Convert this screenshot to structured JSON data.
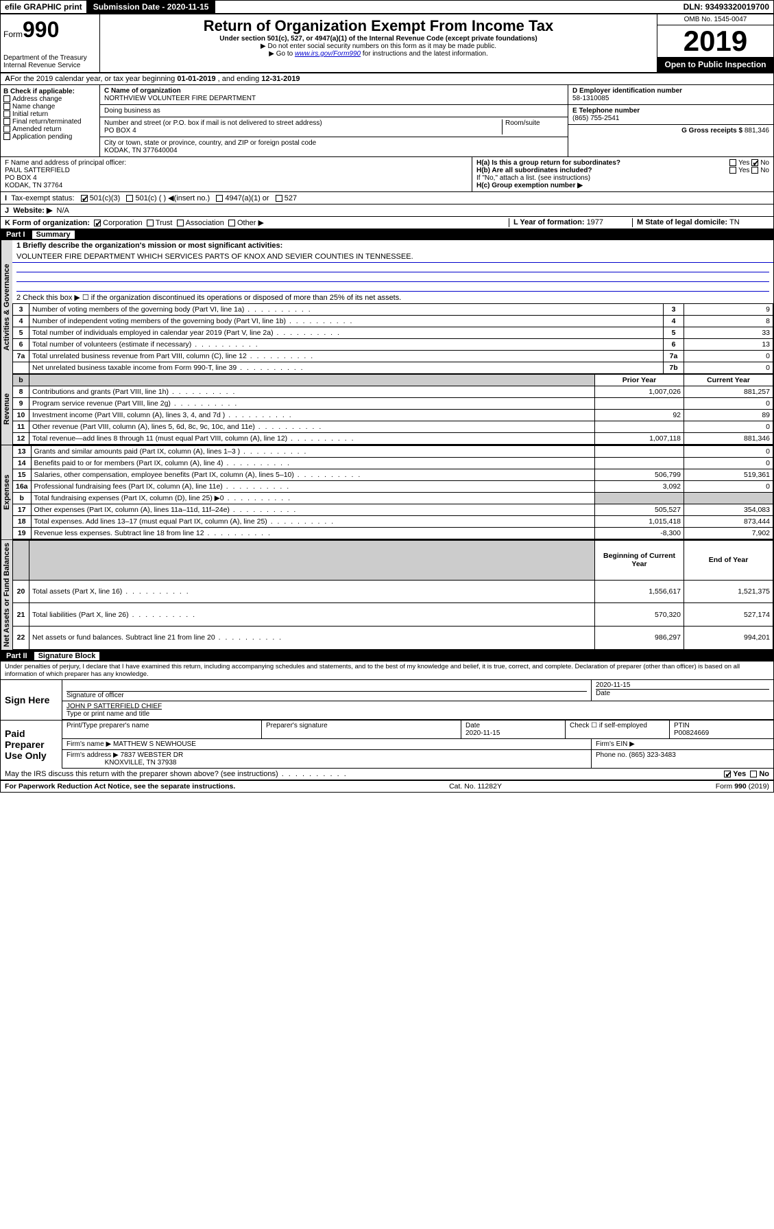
{
  "topbar": {
    "efile": "efile GRAPHIC print",
    "submission_label": "Submission Date - ",
    "submission_date": "2020-11-15",
    "dln_label": "DLN: ",
    "dln": "93493320019700"
  },
  "header": {
    "form_prefix": "Form",
    "form_number": "990",
    "dept": "Department of the Treasury\nInternal Revenue Service",
    "title": "Return of Organization Exempt From Income Tax",
    "sub1": "Under section 501(c), 527, or 4947(a)(1) of the Internal Revenue Code (except private foundations)",
    "sub2": "▶ Do not enter social security numbers on this form as it may be made public.",
    "sub3_pre": "▶ Go to ",
    "sub3_link": "www.irs.gov/Form990",
    "sub3_post": " for instructions and the latest information.",
    "omb": "OMB No. 1545-0047",
    "year": "2019",
    "open": "Open to Public Inspection"
  },
  "period": {
    "label_a": "For the 2019 calendar year, or tax year beginning ",
    "begin": "01-01-2019",
    "label_mid": " , and ending ",
    "end": "12-31-2019"
  },
  "boxB": {
    "title": "B Check if applicable:",
    "items": [
      "Address change",
      "Name change",
      "Initial return",
      "Final return/terminated",
      "Amended return",
      "Application pending"
    ]
  },
  "boxC": {
    "name_label": "C Name of organization",
    "name": "NORTHVIEW VOLUNTEER FIRE DEPARTMENT",
    "dba_label": "Doing business as",
    "dba": "",
    "addr_label": "Number and street (or P.O. box if mail is not delivered to street address)",
    "room_label": "Room/suite",
    "addr": "PO BOX 4",
    "city_label": "City or town, state or province, country, and ZIP or foreign postal code",
    "city": "KODAK, TN  377640004"
  },
  "boxD": {
    "label": "D Employer identification number",
    "value": "58-1310085"
  },
  "boxE": {
    "label": "E Telephone number",
    "value": "(865) 755-2541"
  },
  "boxG": {
    "label": "G Gross receipts $ ",
    "value": "881,346"
  },
  "boxF": {
    "label": "F  Name and address of principal officer:",
    "lines": [
      "PAUL SATTERFIELD",
      "PO BOX 4",
      "KODAK, TN  37764"
    ]
  },
  "boxH": {
    "a_label": "H(a)  Is this a group return for subordinates?",
    "a_yes": "Yes",
    "a_no": "No",
    "b_label": "H(b)  Are all subordinates included?",
    "b_note": "If \"No,\" attach a list. (see instructions)",
    "c_label": "H(c)  Group exemption number ▶"
  },
  "boxI": {
    "label": "Tax-exempt status:",
    "opts": [
      "501(c)(3)",
      "501(c) (  ) ◀(insert no.)",
      "4947(a)(1) or",
      "527"
    ]
  },
  "boxJ": {
    "label": "Website: ▶",
    "value": "N/A"
  },
  "boxK": {
    "label": "K Form of organization:",
    "opts": [
      "Corporation",
      "Trust",
      "Association",
      "Other ▶"
    ]
  },
  "boxL": {
    "label": "L Year of formation: ",
    "value": "1977"
  },
  "boxM": {
    "label": "M State of legal domicile: ",
    "value": "TN"
  },
  "partI": {
    "title": "Part I",
    "subtitle": "Summary"
  },
  "summary": {
    "line1_label": "1  Briefly describe the organization's mission or most significant activities:",
    "line1_value": "VOLUNTEER FIRE DEPARTMENT WHICH SERVICES PARTS OF KNOX AND SEVIER COUNTIES IN TENNESSEE.",
    "line2": "2  Check this box ▶ ☐  if the organization discontinued its operations or disposed of more than 25% of its net assets.",
    "rows_top": [
      {
        "n": "3",
        "label": "Number of voting members of the governing body (Part VI, line 1a)",
        "box": "3",
        "val": "9"
      },
      {
        "n": "4",
        "label": "Number of independent voting members of the governing body (Part VI, line 1b)",
        "box": "4",
        "val": "8"
      },
      {
        "n": "5",
        "label": "Total number of individuals employed in calendar year 2019 (Part V, line 2a)",
        "box": "5",
        "val": "33"
      },
      {
        "n": "6",
        "label": "Total number of volunteers (estimate if necessary)",
        "box": "6",
        "val": "13"
      },
      {
        "n": "7a",
        "label": "Total unrelated business revenue from Part VIII, column (C), line 12",
        "box": "7a",
        "val": "0"
      },
      {
        "n": "",
        "label": "Net unrelated business taxable income from Form 990-T, line 39",
        "box": "7b",
        "val": "0"
      }
    ],
    "col_headers": {
      "prior": "Prior Year",
      "current": "Current Year"
    },
    "section_labels": {
      "gov": "Activities & Governance",
      "rev": "Revenue",
      "exp": "Expenses",
      "net": "Net Assets or Fund Balances"
    },
    "rows_rev": [
      {
        "n": "8",
        "label": "Contributions and grants (Part VIII, line 1h)",
        "prior": "1,007,026",
        "cur": "881,257"
      },
      {
        "n": "9",
        "label": "Program service revenue (Part VIII, line 2g)",
        "prior": "",
        "cur": "0"
      },
      {
        "n": "10",
        "label": "Investment income (Part VIII, column (A), lines 3, 4, and 7d )",
        "prior": "92",
        "cur": "89"
      },
      {
        "n": "11",
        "label": "Other revenue (Part VIII, column (A), lines 5, 6d, 8c, 9c, 10c, and 11e)",
        "prior": "",
        "cur": "0"
      },
      {
        "n": "12",
        "label": "Total revenue—add lines 8 through 11 (must equal Part VIII, column (A), line 12)",
        "prior": "1,007,118",
        "cur": "881,346"
      }
    ],
    "rows_exp": [
      {
        "n": "13",
        "label": "Grants and similar amounts paid (Part IX, column (A), lines 1–3 )",
        "prior": "",
        "cur": "0"
      },
      {
        "n": "14",
        "label": "Benefits paid to or for members (Part IX, column (A), line 4)",
        "prior": "",
        "cur": "0"
      },
      {
        "n": "15",
        "label": "Salaries, other compensation, employee benefits (Part IX, column (A), lines 5–10)",
        "prior": "506,799",
        "cur": "519,361"
      },
      {
        "n": "16a",
        "label": "Professional fundraising fees (Part IX, column (A), line 11e)",
        "prior": "3,092",
        "cur": "0"
      },
      {
        "n": "b",
        "label": "Total fundraising expenses (Part IX, column (D), line 25) ▶0",
        "prior": "shade",
        "cur": "shade"
      },
      {
        "n": "17",
        "label": "Other expenses (Part IX, column (A), lines 11a–11d, 11f–24e)",
        "prior": "505,527",
        "cur": "354,083"
      },
      {
        "n": "18",
        "label": "Total expenses. Add lines 13–17 (must equal Part IX, column (A), line 25)",
        "prior": "1,015,418",
        "cur": "873,444"
      },
      {
        "n": "19",
        "label": "Revenue less expenses. Subtract line 18 from line 12",
        "prior": "-8,300",
        "cur": "7,902"
      }
    ],
    "col_headers2": {
      "begin": "Beginning of Current Year",
      "end": "End of Year"
    },
    "rows_net": [
      {
        "n": "20",
        "label": "Total assets (Part X, line 16)",
        "prior": "1,556,617",
        "cur": "1,521,375"
      },
      {
        "n": "21",
        "label": "Total liabilities (Part X, line 26)",
        "prior": "570,320",
        "cur": "527,174"
      },
      {
        "n": "22",
        "label": "Net assets or fund balances. Subtract line 21 from line 20",
        "prior": "986,297",
        "cur": "994,201"
      }
    ]
  },
  "partII": {
    "title": "Part II",
    "subtitle": "Signature Block"
  },
  "penalty": "Under penalties of perjury, I declare that I have examined this return, including accompanying schedules and statements, and to the best of my knowledge and belief, it is true, correct, and complete. Declaration of preparer (other than officer) is based on all information of which preparer has any knowledge.",
  "sign": {
    "here": "Sign Here",
    "sig_label": "Signature of officer",
    "date_label": "Date",
    "date": "2020-11-15",
    "name_label": "Type or print name and title",
    "name": "JOHN P SATTERFIELD  CHIEF"
  },
  "paid": {
    "label": "Paid Preparer Use Only",
    "h1": "Print/Type preparer's name",
    "h2": "Preparer's signature",
    "h3": "Date",
    "date": "2020-11-15",
    "h4": "Check ☐ if self-employed",
    "h5": "PTIN",
    "ptin": "P00824669",
    "firm_name_label": "Firm's name    ▶ ",
    "firm_name": "MATTHEW S NEWHOUSE",
    "firm_ein_label": "Firm's EIN ▶",
    "firm_addr_label": "Firm's address ▶ ",
    "firm_addr1": "7837 WEBSTER DR",
    "firm_addr2": "KNOXVILLE, TN  37938",
    "phone_label": "Phone no. ",
    "phone": "(865) 323-3483"
  },
  "discuss": {
    "q": "May the IRS discuss this return with the preparer shown above? (see instructions)",
    "yes": "Yes",
    "no": "No"
  },
  "footer": {
    "left": "For Paperwork Reduction Act Notice, see the separate instructions.",
    "mid": "Cat. No. 11282Y",
    "right": "Form 990 (2019)"
  },
  "colors": {
    "link": "#0000cc",
    "shade": "#cccccc",
    "black": "#000000"
  }
}
